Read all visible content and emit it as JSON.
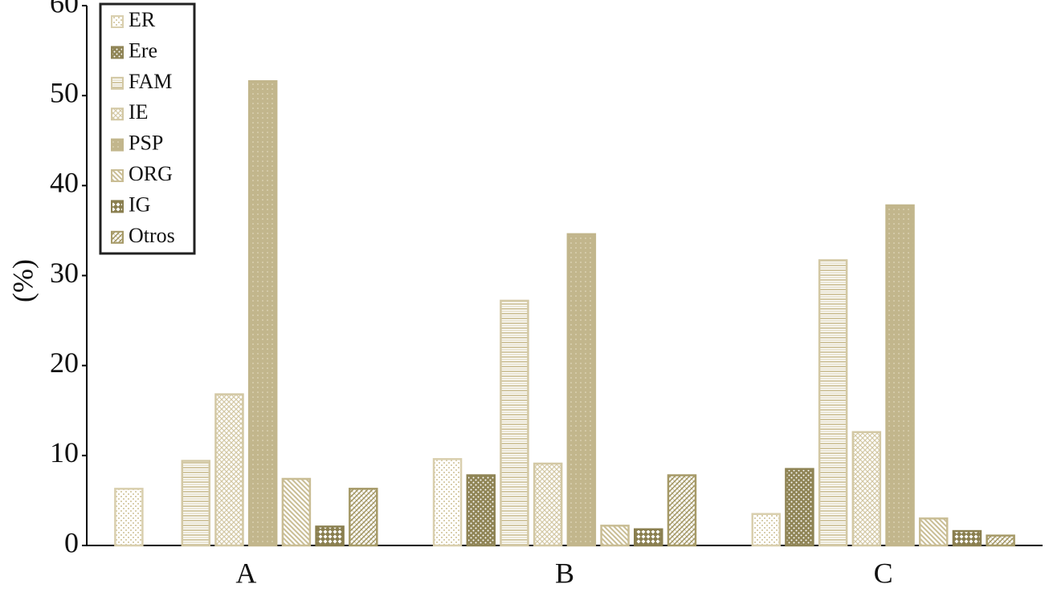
{
  "chart_data": {
    "type": "bar",
    "y_label": "(%)",
    "categories": [
      "A",
      "B",
      "C"
    ],
    "series": [
      {
        "name": "ER",
        "color": "#d9cfae",
        "values": [
          6.3,
          9.6,
          3.5
        ]
      },
      {
        "name": "Ere",
        "color": "#8f8455",
        "values": [
          0,
          7.8,
          8.5
        ]
      },
      {
        "name": "FAM",
        "color": "#d3c8a4",
        "values": [
          9.4,
          27.2,
          31.7
        ]
      },
      {
        "name": "IE",
        "color": "#d3c8a4",
        "values": [
          16.8,
          9.1,
          12.6
        ]
      },
      {
        "name": "PSP",
        "color": "#c2b68c",
        "values": [
          51.6,
          34.6,
          37.8
        ]
      },
      {
        "name": "ORG",
        "color": "#c9bd94",
        "values": [
          7.4,
          2.2,
          3.0
        ]
      },
      {
        "name": "IG",
        "color": "#8a7f4f",
        "values": [
          2.1,
          1.8,
          1.6
        ]
      },
      {
        "name": "Otros",
        "color": "#a69a68",
        "values": [
          6.3,
          7.8,
          1.1
        ]
      }
    ],
    "ylim": [
      0,
      60
    ],
    "yticks": [
      0,
      10,
      20,
      30,
      40,
      50,
      60
    ],
    "grid": false,
    "legend": "top-left"
  }
}
